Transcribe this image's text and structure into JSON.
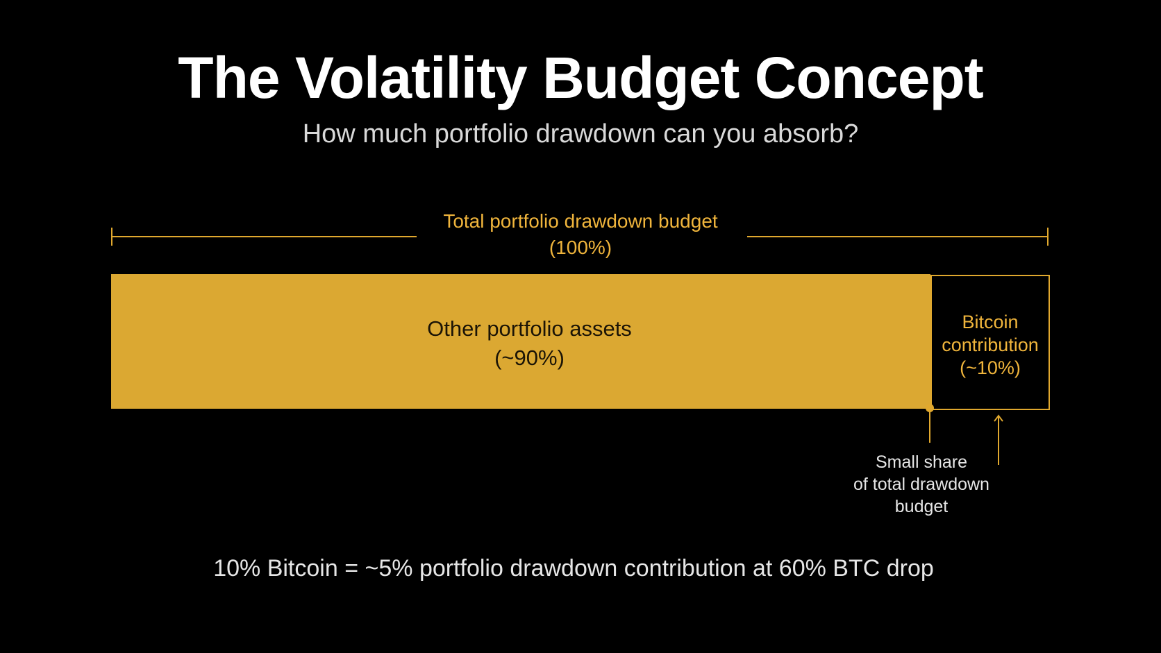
{
  "slide": {
    "title": "The Volatility Budget Concept",
    "subtitle": "How much portfolio drawdown can you absorb?",
    "budget": {
      "label_line1": "Total portfolio drawdown budget",
      "label_line2": "(100%)"
    },
    "segments": [
      {
        "label_line1": "Other portfolio assets",
        "label_line2": "(~90%)",
        "share_percent": 90
      },
      {
        "label_line1": "Bitcoin",
        "label_line2": "contribution",
        "label_line3": "(~10%)",
        "share_percent": 10
      }
    ],
    "annotation": {
      "line1": "Small share",
      "line2": "of total drawdown",
      "line3": "budget"
    },
    "footer": "10% Bitcoin = ~5% portfolio drawdown contribution at 60% BTC drop",
    "colors": {
      "background": "#000000",
      "accent": "#dba832",
      "accent_text": "#f0b53c",
      "text_primary": "#ffffff",
      "text_secondary": "#d9d9d9"
    }
  }
}
